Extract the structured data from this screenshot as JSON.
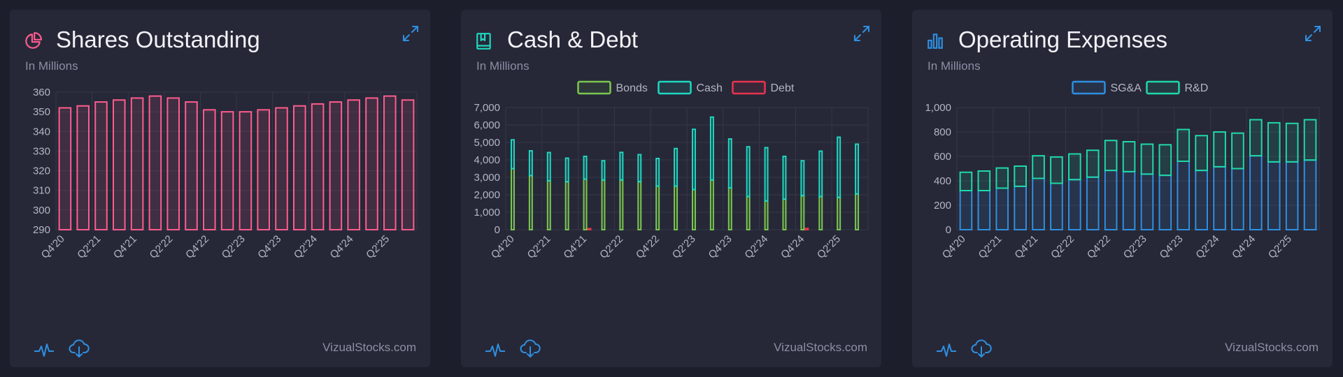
{
  "colors": {
    "background": "#1c1e2b",
    "card": "#262838",
    "grid": "#353849",
    "tick": "#b4b6c6",
    "icon_blue": "#2f8fe0"
  },
  "cards": [
    {
      "title": "Shares Outstanding",
      "subtitle": "In Millions",
      "icon": "pie-chart-icon",
      "icon_color": "#ff5c8d",
      "watermark": "VizualStocks.com"
    },
    {
      "title": "Cash & Debt",
      "subtitle": "In Millions",
      "icon": "bookmark-book-icon",
      "icon_color": "#1fd8c0",
      "watermark": "VizualStocks.com"
    },
    {
      "title": "Operating Expenses",
      "subtitle": "In Millions",
      "icon": "bar-chart-icon",
      "icon_color": "#2f8fe0",
      "watermark": "VizualStocks.com"
    }
  ],
  "chart_data": [
    {
      "type": "bar",
      "title": "Shares Outstanding",
      "subtitle": "In Millions",
      "categories": [
        "Q4'20",
        "Q1'21",
        "Q2'21",
        "Q3'21",
        "Q4'21",
        "Q1'22",
        "Q2'22",
        "Q3'22",
        "Q4'22",
        "Q1'23",
        "Q2'23",
        "Q3'23",
        "Q4'23",
        "Q1'24",
        "Q2'24",
        "Q3'24",
        "Q4'24",
        "Q1'25",
        "Q2'25",
        "Q3'25"
      ],
      "tick_labels": [
        "Q4'20",
        "Q2'21",
        "Q4'21",
        "Q2'22",
        "Q4'22",
        "Q2'23",
        "Q4'23",
        "Q2'24",
        "Q4'24",
        "Q2'25"
      ],
      "series": [
        {
          "color": "#ff5c8d",
          "values": [
            352,
            353,
            355,
            356,
            357,
            358,
            357,
            355,
            351,
            350,
            350,
            351,
            352,
            353,
            354,
            355,
            356,
            357,
            358,
            356
          ]
        }
      ],
      "ylim": [
        290,
        360
      ],
      "yticks": [
        290,
        300,
        310,
        320,
        330,
        340,
        350,
        360
      ],
      "stacked": false,
      "legend": "none",
      "grid": true
    },
    {
      "type": "bar",
      "title": "Cash & Debt",
      "subtitle": "In Millions",
      "categories": [
        "Q4'20",
        "Q1'21",
        "Q2'21",
        "Q3'21",
        "Q4'21",
        "Q1'22",
        "Q2'22",
        "Q3'22",
        "Q4'22",
        "Q1'23",
        "Q2'23",
        "Q3'23",
        "Q4'23",
        "Q1'24",
        "Q2'24",
        "Q3'24",
        "Q4'24",
        "Q1'25",
        "Q2'25",
        "Q3'25"
      ],
      "tick_labels": [
        "Q4'20",
        "Q2'21",
        "Q4'21",
        "Q2'22",
        "Q4'22",
        "Q2'23",
        "Q4'23",
        "Q2'24",
        "Q4'24",
        "Q2'25"
      ],
      "series": [
        {
          "name": "Bonds",
          "color": "#7ac74f",
          "stack": "assets",
          "values": [
            3500,
            3100,
            2800,
            2750,
            2900,
            2850,
            2850,
            2750,
            2500,
            2500,
            2300,
            2850,
            2400,
            1900,
            1650,
            1750,
            1950,
            1900,
            1850,
            2050
          ]
        },
        {
          "name": "Cash",
          "color": "#1fd8c0",
          "stack": "assets",
          "values": [
            1650,
            1420,
            1620,
            1350,
            1300,
            1100,
            1580,
            1550,
            1580,
            2150,
            3450,
            3600,
            2800,
            2850,
            3050,
            2450,
            2000,
            2600,
            3450,
            2850
          ]
        },
        {
          "name": "Debt",
          "color": "#e8344e",
          "stack": "debt",
          "values": [
            0,
            0,
            0,
            0,
            60,
            0,
            0,
            0,
            0,
            0,
            0,
            0,
            0,
            0,
            0,
            0,
            70,
            0,
            0,
            0
          ]
        }
      ],
      "ylim": [
        0,
        7000
      ],
      "yticks": [
        0,
        1000,
        2000,
        3000,
        4000,
        5000,
        6000,
        7000
      ],
      "ytick_labels": [
        "0",
        "1,000",
        "2,000",
        "3,000",
        "4,000",
        "5,000",
        "6,000",
        "7,000"
      ],
      "stacked": true,
      "legend": "top-center",
      "grid": true
    },
    {
      "type": "bar",
      "title": "Operating Expenses",
      "subtitle": "In Millions",
      "categories": [
        "Q4'20",
        "Q1'21",
        "Q2'21",
        "Q3'21",
        "Q4'21",
        "Q1'22",
        "Q2'22",
        "Q3'22",
        "Q4'22",
        "Q1'23",
        "Q2'23",
        "Q3'23",
        "Q4'23",
        "Q1'24",
        "Q2'24",
        "Q3'24",
        "Q4'24",
        "Q1'25",
        "Q2'25",
        "Q3'25"
      ],
      "tick_labels": [
        "Q4'20",
        "Q2'21",
        "Q4'21",
        "Q2'22",
        "Q4'22",
        "Q2'23",
        "Q4'23",
        "Q2'24",
        "Q4'24",
        "Q2'25"
      ],
      "series": [
        {
          "name": "SG&A",
          "color": "#2f8fe0",
          "stack": "opex",
          "values": [
            320,
            320,
            340,
            355,
            420,
            380,
            410,
            430,
            485,
            475,
            455,
            445,
            560,
            485,
            515,
            500,
            605,
            555,
            555,
            570
          ]
        },
        {
          "name": "R&D",
          "color": "#1fd8a8",
          "stack": "opex",
          "values": [
            150,
            160,
            165,
            165,
            185,
            215,
            210,
            220,
            245,
            245,
            245,
            250,
            260,
            285,
            285,
            290,
            295,
            320,
            315,
            330
          ]
        }
      ],
      "ylim": [
        0,
        1000
      ],
      "yticks": [
        0,
        200,
        400,
        600,
        800,
        1000
      ],
      "ytick_labels": [
        "0",
        "200",
        "400",
        "600",
        "800",
        "1,000"
      ],
      "stacked": true,
      "legend": "top-center",
      "grid": true
    }
  ]
}
